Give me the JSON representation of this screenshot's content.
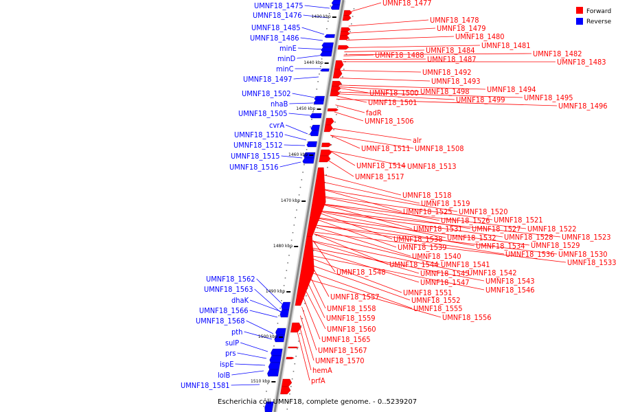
{
  "caption": "Escherichia coli UMNF18, complete genome. - 0..5239207",
  "legend": [
    {
      "label": "Forward",
      "color": "#ff0000"
    },
    {
      "label": "Reverse",
      "color": "#0000ff"
    }
  ],
  "colors": {
    "forward": "#ff0000",
    "reverse": "#0000ff",
    "axis": "#888888"
  },
  "ticks": [
    "1430 kbp",
    "1440 kbp",
    "1450 kbp",
    "1460 kbp",
    "1470 kbp",
    "1480 kbp",
    "1490 kbp",
    "1500 kbp",
    "1510 kbp"
  ],
  "reverse_labels": [
    "UMNF18_1475",
    "UMNF18_1476",
    "UMNF18_1485",
    "UMNF18_1486",
    "minE",
    "minD",
    "minC",
    "UMNF18_1497",
    "UMNF18_1502",
    "nhaB",
    "UMNF18_1505",
    "cvrA",
    "UMNF18_1510",
    "UMNF18_1512",
    "UMNF18_1515",
    "UMNF18_1516",
    "UMNF18_1562",
    "UMNF18_1563",
    "dhaK",
    "UMNF18_1566",
    "UMNF18_1568",
    "pth",
    "sulP",
    "prs",
    "ispE",
    "lolB",
    "UMNF18_1581"
  ],
  "forward_labels": [
    "UMNF18_1477",
    "UMNF18_1478",
    "UMNF18_1479",
    "UMNF18_1480",
    "UMNF18_1481",
    "UMNF18_1482",
    "UMNF18_1483",
    "UMNF18_1484",
    "UMNF18_1488",
    "UMNF18_1487",
    "UMNF18_1492",
    "UMNF18_1493",
    "UMNF18_1494",
    "UMNF18_1498",
    "UMNF18_1500",
    "UMNF18_1495",
    "UMNF18_1499",
    "UMNF18_1496",
    "UMNF18_1501",
    "fadR",
    "UMNF18_1506",
    "alr",
    "UMNF18_1511",
    "UMNF18_1508",
    "UMNF18_1514",
    "UMNF18_1513",
    "UMNF18_1517",
    "UMNF18_1518",
    "UMNF18_1519",
    "UMNF18_1525",
    "UMNF18_1520",
    "UMNF18_1526",
    "UMNF18_1521",
    "UMNF18_1531",
    "UMNF18_1527",
    "UMNF18_1522",
    "UMNF18_1538",
    "UMNF18_1532",
    "UMNF18_1528",
    "UMNF18_1523",
    "UMNF18_1539",
    "UMNF18_1534",
    "UMNF18_1529",
    "UMNF18_1536",
    "UMNF18_1530",
    "UMNF18_1540",
    "UMNF18_1533",
    "UMNF18_1544",
    "UMNF18_1541",
    "UMNF18_1548",
    "UMNF18_1545",
    "UMNF18_1542",
    "UMNF18_1547",
    "UMNF18_1543",
    "UMNF18_1546",
    "UMNF18_1551",
    "UMNF18_1557",
    "UMNF18_1552",
    "UMNF18_1558",
    "UMNF18_1555",
    "UMNF18_1559",
    "UMNF18_1556",
    "UMNF18_1560",
    "UMNF18_1565",
    "UMNF18_1567",
    "UMNF18_1570",
    "hemA",
    "prfA"
  ]
}
